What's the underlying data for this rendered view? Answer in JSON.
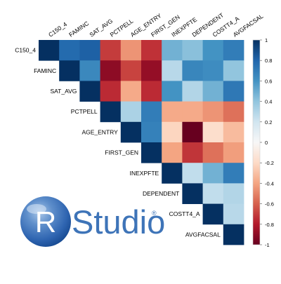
{
  "chart_data": {
    "type": "heatmap",
    "title": "",
    "xlabel": "",
    "ylabel": "",
    "variables": [
      "C150_4",
      "FAMINC",
      "SAT_AVG",
      "PCTPELL",
      "AGE_ENTRY",
      "FIRST_GEN",
      "INEXPFTE",
      "DEPENDENT",
      "COSTT4_A",
      "AVGFACSAL"
    ],
    "layout": "upper-triangle",
    "matrix": [
      [
        1,
        0.78,
        0.82,
        -0.7,
        -0.45,
        -0.73,
        0.48,
        0.42,
        0.6,
        0.7
      ],
      [
        null,
        1,
        0.65,
        -0.9,
        -0.68,
        -0.88,
        0.28,
        0.66,
        0.63,
        0.4
      ],
      [
        null,
        null,
        1,
        -0.75,
        -0.38,
        -0.75,
        0.6,
        0.3,
        0.48,
        0.72
      ],
      [
        null,
        null,
        null,
        1,
        0.32,
        0.7,
        -0.38,
        -0.38,
        -0.45,
        -0.55
      ],
      [
        null,
        null,
        null,
        null,
        1,
        0.68,
        -0.22,
        -1.0,
        -0.18,
        -0.32
      ],
      [
        null,
        null,
        null,
        null,
        null,
        1,
        -0.4,
        -0.72,
        -0.55,
        -0.42
      ],
      [
        null,
        null,
        null,
        null,
        null,
        null,
        1,
        0.25,
        0.48,
        0.7
      ],
      [
        null,
        null,
        null,
        null,
        null,
        null,
        null,
        1,
        0.25,
        0.3
      ],
      [
        null,
        null,
        null,
        null,
        null,
        null,
        null,
        null,
        1,
        0.28
      ],
      [
        null,
        null,
        null,
        null,
        null,
        null,
        null,
        null,
        null,
        1
      ]
    ],
    "color_scale": {
      "min": -1,
      "max": 1,
      "low_color": "#67001f",
      "mid_color": "#f7f7f7",
      "high_color": "#053061"
    },
    "legend": {
      "position": "right",
      "ticks": [
        1,
        0.8,
        0.6,
        0.4,
        0.2,
        0,
        -0.2,
        -0.4,
        -0.6,
        -0.8,
        -1
      ]
    },
    "tick_labels": [
      "1",
      "0.8",
      "0.6",
      "0.4",
      "0.2",
      "0",
      "-0.2",
      "-0.4",
      "-0.6",
      "-0.8",
      "-1"
    ],
    "grid": false
  },
  "logo": {
    "letter": "R",
    "text": "Studio",
    "mark": "®"
  }
}
